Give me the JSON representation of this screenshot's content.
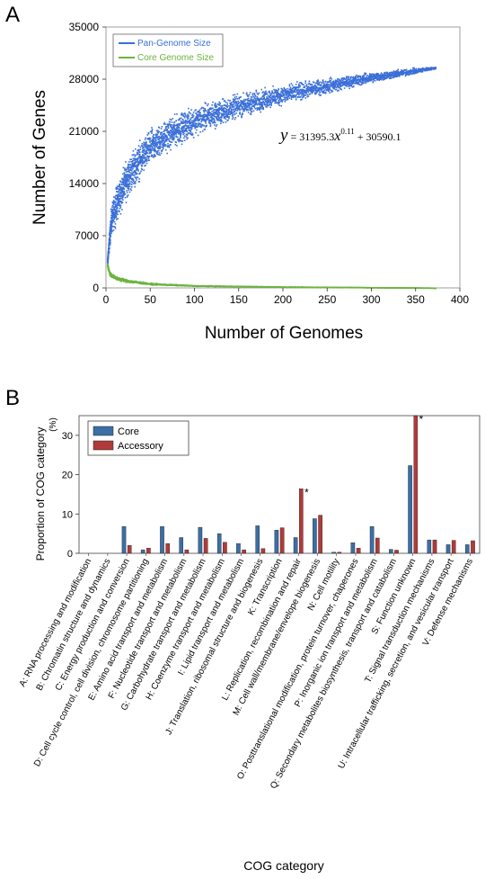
{
  "panels": [
    {
      "label": "A"
    },
    {
      "label": "B"
    }
  ],
  "colors": {
    "pan": "#3a6fd8",
    "core_curve": "#6cb33f",
    "core_bar": "#3b6fa5",
    "accessory_bar": "#b13a3a"
  },
  "chart_data": [
    {
      "type": "scatter",
      "xlabel": "Number of Genomes",
      "ylabel": "Number of Genes",
      "xlim": [
        0,
        400
      ],
      "ylim": [
        0,
        35000
      ],
      "xticks": [
        0,
        50,
        100,
        150,
        200,
        250,
        300,
        350,
        400
      ],
      "yticks": [
        0,
        7000,
        14000,
        21000,
        28000,
        35000
      ],
      "legend": "top-left",
      "equation": "y = 31395.3x^0.11 + 30590.1",
      "series": [
        {
          "name": "Pan-Genome Size",
          "x": [
            1,
            5,
            10,
            20,
            30,
            50,
            75,
            100,
            150,
            200,
            250,
            300,
            350,
            372
          ],
          "y": [
            3500,
            8800,
            11000,
            14000,
            16000,
            19000,
            21000,
            22500,
            24500,
            26000,
            27200,
            28300,
            29200,
            29600
          ],
          "spread": [
            500,
            2400,
            3000,
            3300,
            3300,
            3000,
            2700,
            2500,
            2100,
            1700,
            1300,
            900,
            500,
            150
          ]
        },
        {
          "name": "Core Genome Size",
          "x": [
            1,
            3,
            5,
            10,
            20,
            30,
            50,
            100,
            200,
            300,
            372
          ],
          "y": [
            3200,
            2200,
            1800,
            1400,
            1100,
            900,
            600,
            350,
            200,
            120,
            60
          ],
          "spread": [
            500,
            500,
            400,
            350,
            300,
            250,
            150,
            80,
            40,
            30,
            20
          ]
        }
      ]
    },
    {
      "type": "bar",
      "ylabel": "Proportion of COG category",
      "yunit": "(%)",
      "xlabel": "COG category",
      "ylim": [
        0,
        35
      ],
      "yticks": [
        0,
        10,
        20,
        30
      ],
      "legend": "top-left",
      "categories": [
        "A: RNA processing and modification",
        "B: Chromatin structure and dynamics",
        "C: Energy production and conversion",
        "D: Cell cycle control, cell division, chromosome partitioning",
        "E: Amino acid transport and metabolism",
        "F: Nucleotide transport and metabolism",
        "G: Carbohydrate transport and metabolism",
        "H: Coenzyme transport and metabolism",
        "I: Lipid transport and metabolism",
        "J: Translation, ribosomal structure and biogenesis",
        "K: Transcription",
        "L: Replication, recombination and repair",
        "M: Cell wall/membrane/envelope biogenesis",
        "N: Cell motility",
        "O: Posttranslational modification, protein turnover, chaperones",
        "P: Inorganic ion transport and metabolism",
        "Q: Secondary metabolites biosynthesis, transport and catabolism",
        "S: Function unknown",
        "T: Signal transduction mechanisms",
        "U: Intracellular trafficking, secretion, and vesicular transport",
        "V: Defense mechanisms"
      ],
      "series": [
        {
          "name": "Core",
          "values": [
            0,
            0,
            6.8,
            0.9,
            6.8,
            4.0,
            6.6,
            5.0,
            2.5,
            7.0,
            5.9,
            4.0,
            8.8,
            0.3,
            2.7,
            6.8,
            1.0,
            22.3,
            3.4,
            2.2,
            2.2
          ]
        },
        {
          "name": "Accessory",
          "values": [
            0,
            0,
            2.0,
            1.3,
            2.5,
            0.9,
            3.8,
            2.8,
            0.9,
            1.2,
            6.5,
            16.4,
            9.7,
            0.3,
            1.3,
            3.9,
            0.8,
            35.0,
            3.4,
            3.3,
            3.2
          ]
        }
      ],
      "annotations": [
        {
          "category": "L: Replication, recombination and repair",
          "text": "*"
        },
        {
          "category": "S: Function unknown",
          "text": "*"
        }
      ]
    }
  ]
}
